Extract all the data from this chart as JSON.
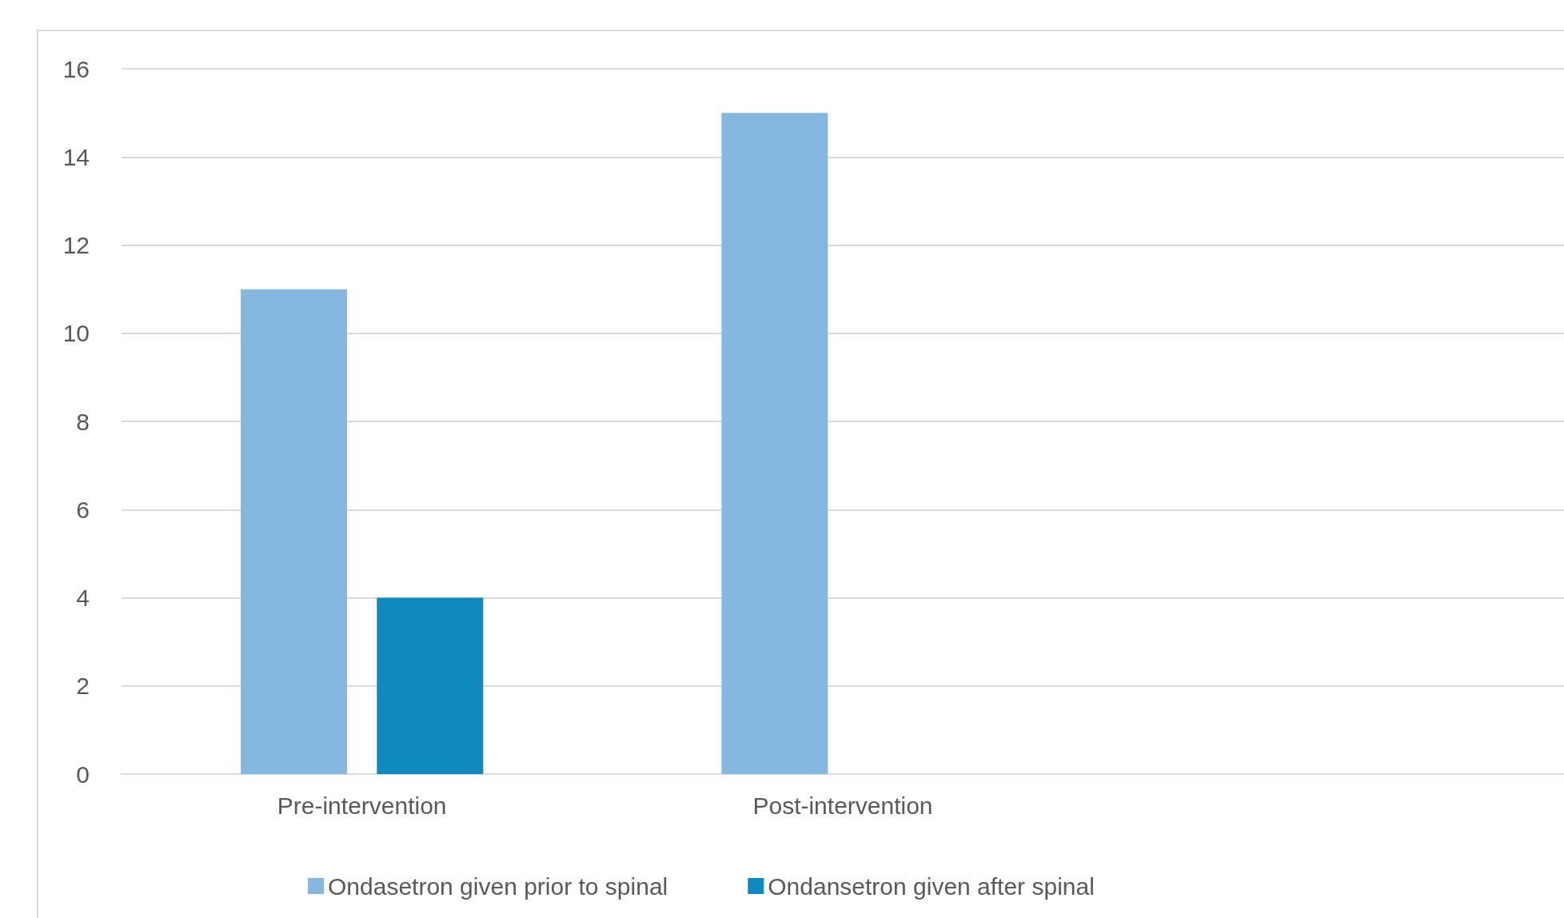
{
  "chart_data": {
    "type": "bar",
    "categories": [
      "Pre-intervention",
      "Post-intervention",
      null
    ],
    "series": [
      {
        "name": "Ondasetron given prior to spinal",
        "color": "#85b8e0",
        "values": [
          11,
          15,
          null
        ]
      },
      {
        "name": "Ondansetron given after spinal",
        "color": "#0e8abe",
        "values": [
          4,
          0,
          null
        ]
      }
    ],
    "ylim": [
      0,
      16
    ],
    "yticks": [
      0,
      2,
      4,
      6,
      8,
      10,
      12,
      14,
      16
    ],
    "grid": "y",
    "legend": "bottom"
  }
}
